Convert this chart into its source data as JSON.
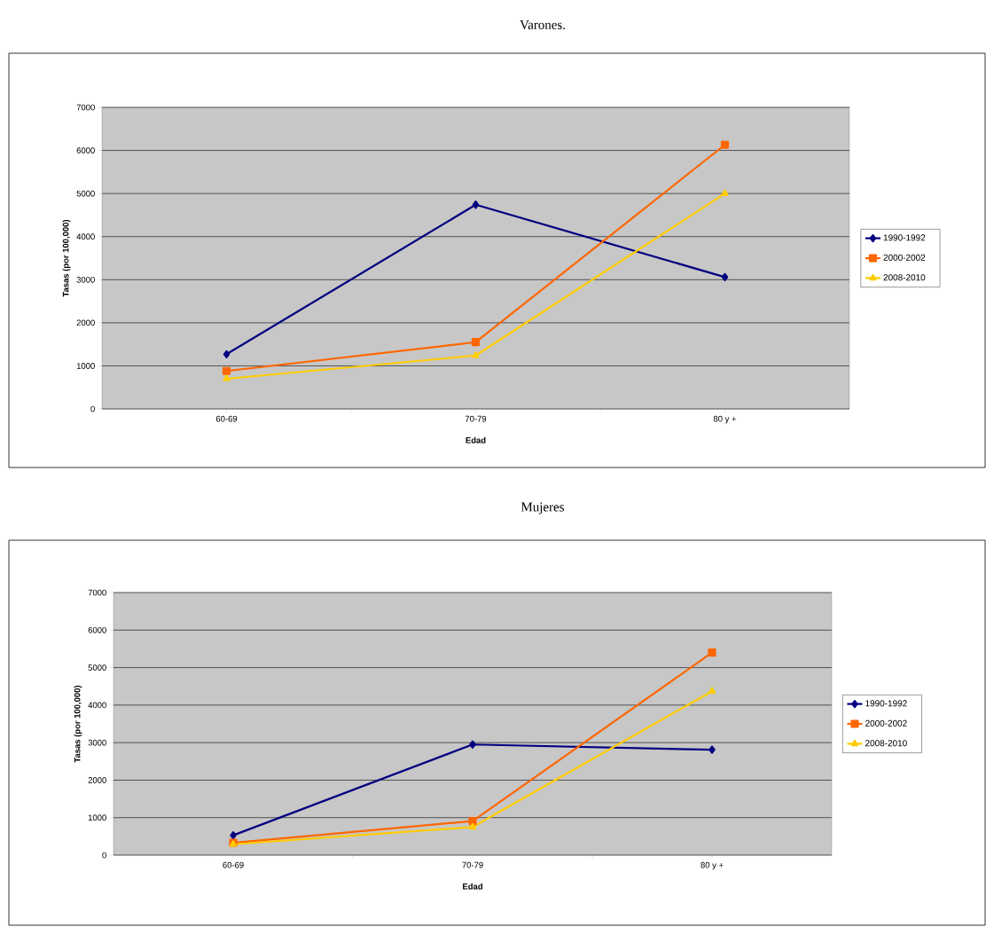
{
  "chart_data": [
    {
      "type": "line",
      "title": "Varones.",
      "xlabel": "Edad",
      "ylabel": "Tasas (por 100,000)",
      "categories": [
        "60-69",
        "70-79",
        "80 y +"
      ],
      "ylim": [
        0,
        7000
      ],
      "yticks": [
        0,
        1000,
        2000,
        3000,
        4000,
        5000,
        6000,
        7000
      ],
      "grid": "y",
      "legend": "right",
      "series": [
        {
          "name": "1990-1992",
          "color": "#000080",
          "marker": "diamond",
          "values": [
            1270,
            4740,
            3060
          ]
        },
        {
          "name": "2000-2002",
          "color": "#ff6600",
          "marker": "square",
          "values": [
            880,
            1550,
            6130
          ]
        },
        {
          "name": "2008-2010",
          "color": "#ffcc00",
          "marker": "triangle",
          "values": [
            700,
            1240,
            5000
          ]
        }
      ]
    },
    {
      "type": "line",
      "title": "Mujeres",
      "xlabel": "Edad",
      "ylabel": "Tasas (por 100,000)",
      "categories": [
        "60-69",
        "70-79",
        "80 y +"
      ],
      "ylim": [
        0,
        7000
      ],
      "yticks": [
        0,
        1000,
        2000,
        3000,
        4000,
        5000,
        6000,
        7000
      ],
      "grid": "y",
      "legend": "right",
      "series": [
        {
          "name": "1990-1992",
          "color": "#000080",
          "marker": "diamond",
          "values": [
            530,
            2950,
            2810
          ]
        },
        {
          "name": "2000-2002",
          "color": "#ff6600",
          "marker": "square",
          "values": [
            330,
            910,
            5400
          ]
        },
        {
          "name": "2008-2010",
          "color": "#ffcc00",
          "marker": "triangle",
          "values": [
            290,
            750,
            4370
          ]
        }
      ]
    }
  ]
}
